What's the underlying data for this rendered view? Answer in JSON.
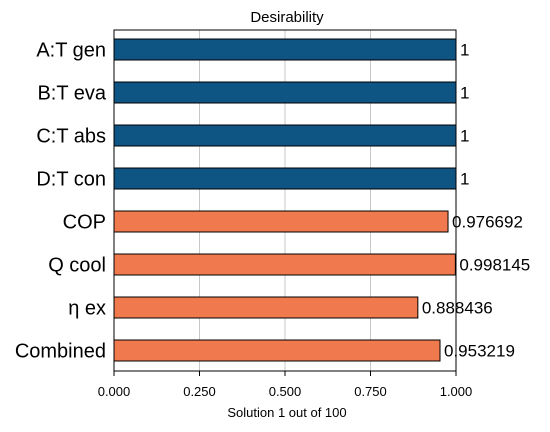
{
  "chart_data": {
    "type": "bar",
    "orientation": "horizontal",
    "title": "Desirability",
    "xlabel": "Solution 1 out of 100",
    "ylabel": "",
    "xlim": [
      0,
      1
    ],
    "xticks": [
      "0.000",
      "0.250",
      "0.500",
      "0.750",
      "1.000"
    ],
    "grid": true,
    "categories": [
      "A:T gen",
      "B:T eva",
      "C:T abs",
      "D:T con",
      "COP",
      "Q cool",
      "η ex",
      "Combined"
    ],
    "values": [
      1,
      1,
      1,
      1,
      0.976692,
      0.998145,
      0.888436,
      0.953219
    ],
    "value_labels": [
      "1",
      "1",
      "1",
      "1",
      "0.976692",
      "0.998145",
      "0.888436",
      "0.953219"
    ],
    "bar_colors": [
      "#0e5584",
      "#0e5584",
      "#0e5584",
      "#0e5584",
      "#f07a4d",
      "#f07a4d",
      "#f07a4d",
      "#f07a4d"
    ]
  }
}
